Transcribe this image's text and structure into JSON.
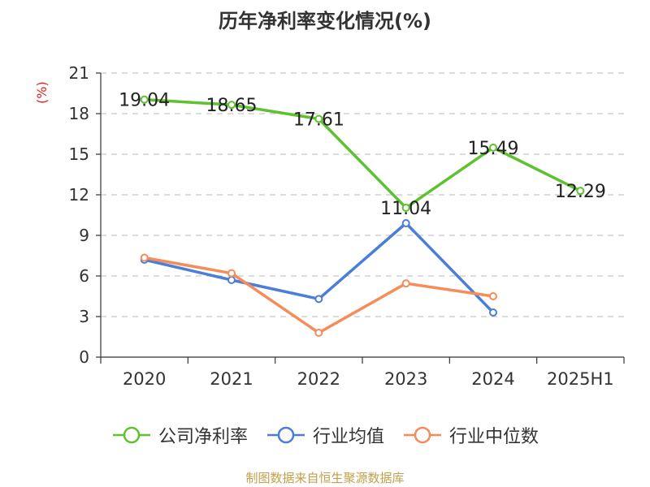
{
  "chart_data": {
    "type": "line",
    "title": "历年净利率变化情况(%)",
    "ylabel": "(%)",
    "categories": [
      "2020",
      "2021",
      "2022",
      "2023",
      "2024",
      "2025H1"
    ],
    "yticks": [
      "0",
      "3",
      "6",
      "9",
      "12",
      "15",
      "18",
      "21"
    ],
    "ylim": [
      0,
      21
    ],
    "grid": true,
    "legend_position": "bottom",
    "series": [
      {
        "name": "公司净利率",
        "color": "#5ec12f",
        "values": [
          19.04,
          18.65,
          17.61,
          11.04,
          15.49,
          12.29
        ],
        "labels": [
          "19.04",
          "18.65",
          "17.61",
          "11.04",
          "15.49",
          "12.29"
        ]
      },
      {
        "name": "行业均值",
        "color": "#4a7ed8",
        "values": [
          7.2,
          5.7,
          4.3,
          9.9,
          3.3,
          null
        ]
      },
      {
        "name": "行业中位数",
        "color": "#f58c5a",
        "values": [
          7.35,
          6.2,
          1.8,
          5.45,
          4.5,
          null
        ]
      }
    ]
  },
  "source": "制图数据来自恒生聚源数据库"
}
